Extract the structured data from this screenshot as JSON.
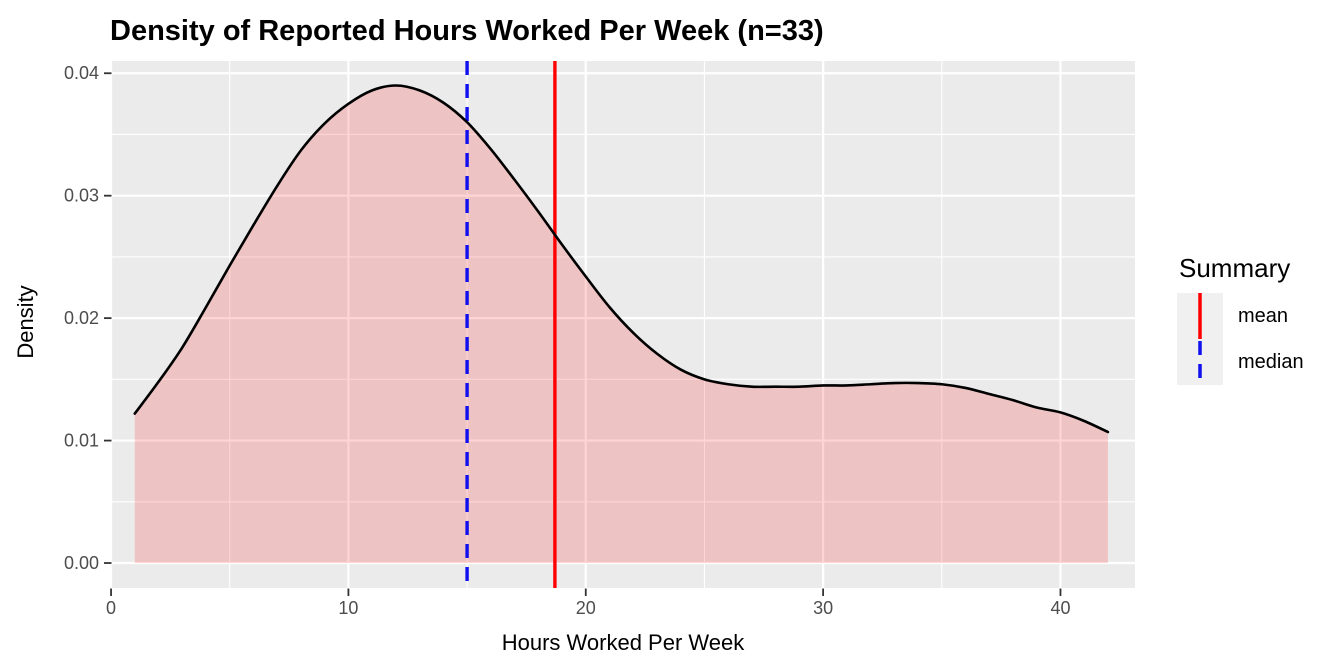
{
  "header": {
    "title": "Density of Reported Hours Worked Per Week (n=33)"
  },
  "axes": {
    "x_label": "Hours Worked Per Week",
    "y_label": "Density",
    "x_tick_labels": [
      "0",
      "10",
      "20",
      "30",
      "40"
    ],
    "y_tick_labels": [
      "0.00",
      "0.01",
      "0.02",
      "0.03",
      "0.04"
    ]
  },
  "legend": {
    "title": "Summary",
    "items": [
      {
        "label": "mean",
        "color": "#FF0000",
        "linetype": "solid"
      },
      {
        "label": "median",
        "color": "#0F0FF0",
        "linetype": "dashed"
      }
    ]
  },
  "colors": {
    "panel_background": "#EBEBEB",
    "gridline": "#FFFFFF",
    "density_line": "#000000",
    "density_fill": "rgba(255,0,0,0.17)",
    "mean_line": "#FF0000",
    "median_line": "#0F0FF0",
    "axis_text": "#4D4D4D",
    "tick_mark": "#333333",
    "legend_key_background": "#F0F0F0"
  },
  "chart_data": {
    "type": "area",
    "title": "Density of Reported Hours Worked Per Week (n=33)",
    "xlabel": "Hours Worked Per Week",
    "ylabel": "Density",
    "n": 33,
    "mean": 18.7,
    "median": 15,
    "x": [
      1,
      2,
      3,
      4,
      5,
      6,
      7,
      8,
      9,
      10,
      11,
      12,
      13,
      14,
      15,
      16,
      17,
      18,
      19,
      20,
      21,
      22,
      23,
      24,
      25,
      26,
      27,
      28,
      29,
      30,
      31,
      32,
      33,
      34,
      35,
      36,
      37,
      38,
      39,
      40,
      41,
      42
    ],
    "density": [
      0.0122,
      0.0148,
      0.0176,
      0.0209,
      0.0243,
      0.0276,
      0.0308,
      0.0337,
      0.0359,
      0.0375,
      0.0386,
      0.039,
      0.0386,
      0.0376,
      0.036,
      0.0338,
      0.0313,
      0.0287,
      0.026,
      0.0234,
      0.0209,
      0.0188,
      0.0171,
      0.0158,
      0.015,
      0.0146,
      0.0144,
      0.0144,
      0.0144,
      0.0145,
      0.0145,
      0.0146,
      0.0147,
      0.0147,
      0.0146,
      0.0143,
      0.0138,
      0.0133,
      0.0127,
      0.0123,
      0.0116,
      0.0107
    ],
    "x_ticks": [
      0,
      10,
      20,
      30,
      40
    ],
    "y_ticks": [
      0,
      0.01,
      0.02,
      0.03,
      0.04
    ],
    "x_minor": [
      5,
      15,
      25,
      35
    ],
    "y_minor": [
      0.005,
      0.015,
      0.025,
      0.035
    ],
    "xlim": [
      0.04,
      43.14
    ],
    "ylim": [
      -0.00204,
      0.041
    ],
    "grid": true,
    "legend_position": "right"
  }
}
